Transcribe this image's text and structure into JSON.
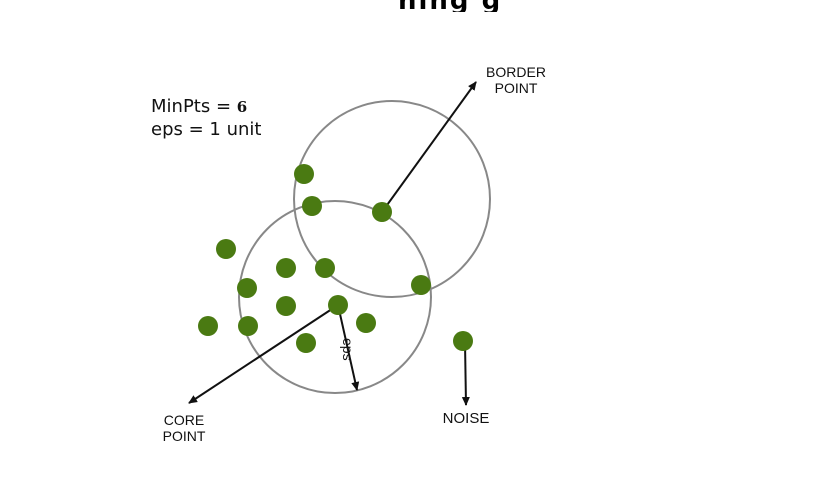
{
  "header": {
    "partial_title": "ning g"
  },
  "parameters": {
    "minpts_label": "MinPts =",
    "minpts_value": "6",
    "eps_line": "eps = 1 unit"
  },
  "labels": {
    "border_point": [
      "BORDER",
      "POINT"
    ],
    "core_point": [
      "CORE",
      "POINT"
    ],
    "noise": "NOISE",
    "eps": "eps"
  },
  "colors": {
    "point": "#4a7a12",
    "circle": "#888888",
    "arrow": "#111111",
    "text": "#111111"
  },
  "icons": {
    "arrow_head": "arrowhead"
  }
}
